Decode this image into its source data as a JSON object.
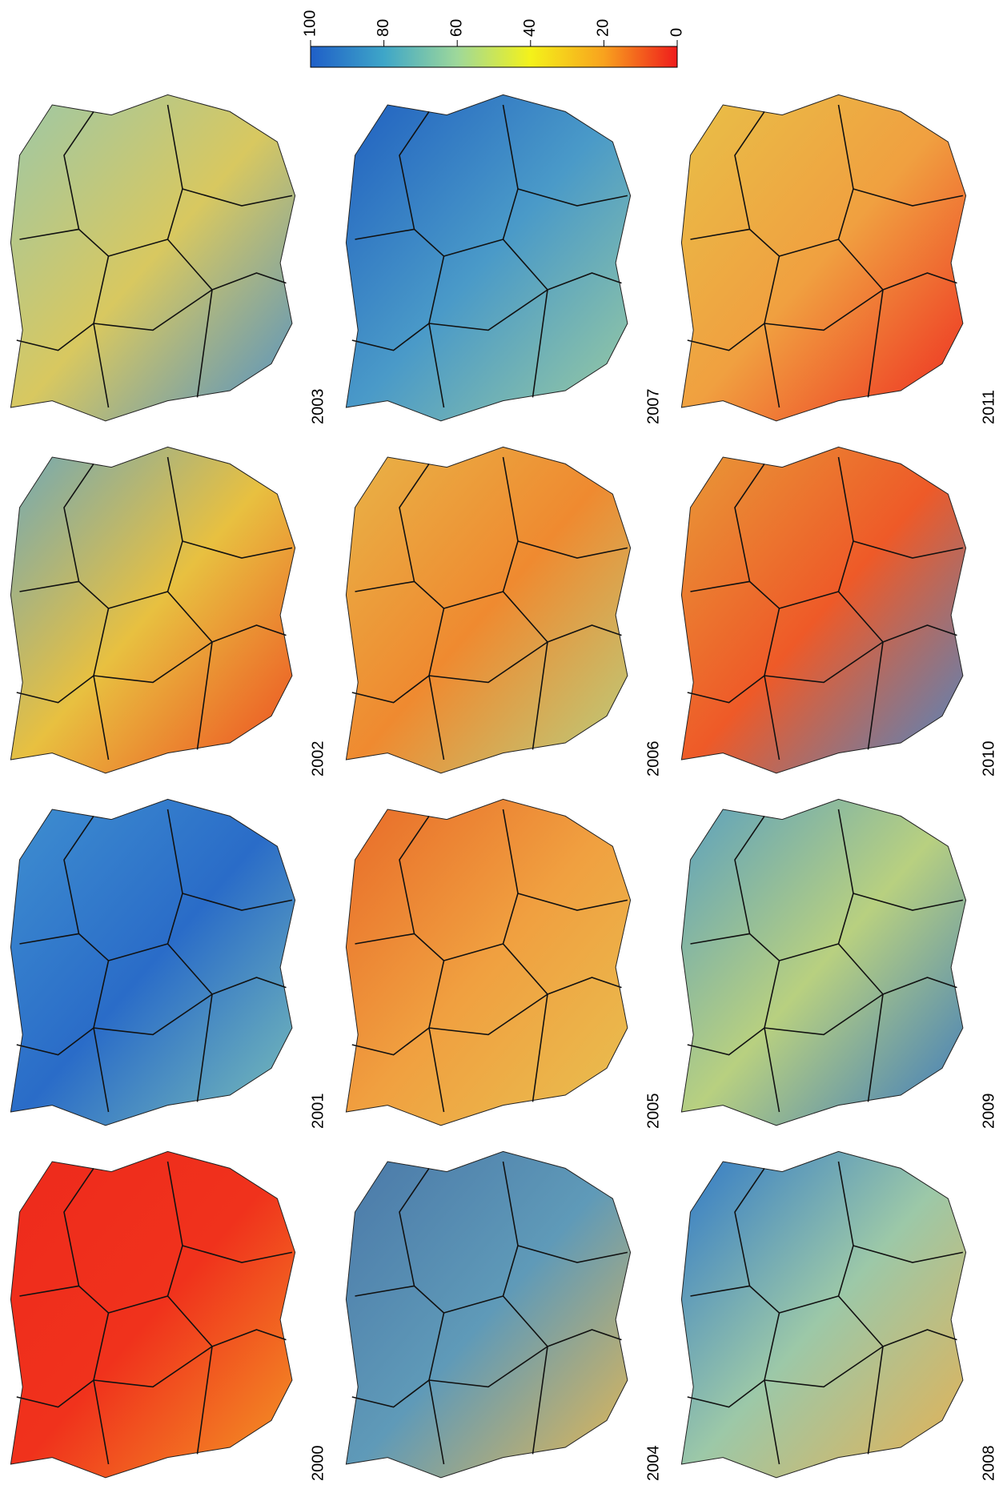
{
  "colorbar": {
    "range": [
      0,
      100
    ],
    "ticks": [
      100,
      80,
      60,
      40,
      20,
      0
    ]
  },
  "panels": [
    {
      "label": "2000"
    },
    {
      "label": "2001"
    },
    {
      "label": "2002"
    },
    {
      "label": "2003"
    },
    {
      "label": "2004"
    },
    {
      "label": "2005"
    },
    {
      "label": "2006"
    },
    {
      "label": "2007"
    },
    {
      "label": "2008"
    },
    {
      "label": "2009"
    },
    {
      "label": "2010"
    },
    {
      "label": "2011"
    }
  ]
}
